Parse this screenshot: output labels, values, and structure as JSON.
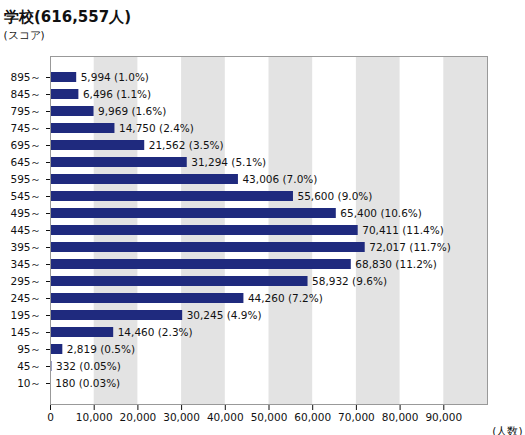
{
  "chart_data": {
    "type": "bar",
    "orientation": "horizontal",
    "title": "学校(616,557人)",
    "ylabel": "(スコア)",
    "xlabel": "(人数)",
    "categories": [
      "895～",
      "845～",
      "795～",
      "745～",
      "695～",
      "645～",
      "595～",
      "545～",
      "495～",
      "445～",
      "395～",
      "345～",
      "295～",
      "245～",
      "195～",
      "145～",
      "95～",
      "45～",
      "10～"
    ],
    "values": [
      5994,
      6496,
      9969,
      14750,
      21562,
      31294,
      43006,
      55600,
      65400,
      70411,
      72017,
      68830,
      58932,
      44260,
      30245,
      14460,
      2819,
      332,
      180
    ],
    "value_labels": [
      "5,994 (1.0%)",
      "6,496 (1.1%)",
      "9,969 (1.6%)",
      "14,750 (2.4%)",
      "21,562 (3.5%)",
      "31,294 (5.1%)",
      "43,006 (7.0%)",
      "55,600 (9.0%)",
      "65,400 (10.6%)",
      "70,411 (11.4%)",
      "72,017 (11.7%)",
      "68,830 (11.2%)",
      "58,932 (9.6%)",
      "44,260 (7.2%)",
      "30,245 (4.9%)",
      "14,460 (2.3%)",
      "2,819 (0.5%)",
      "332 (0.05%)",
      "180 (0.03%)"
    ],
    "data_labels": true,
    "color": "#1f2a7e",
    "xlim": [
      0,
      100000
    ],
    "xticks": [
      0,
      {
        "value": 10000,
        "label": "10,000"
      },
      {
        "value": 20000,
        "label": "20,000"
      },
      {
        "value": 30000,
        "label": "30,000"
      },
      {
        "value": 40000,
        "label": "40,000"
      },
      {
        "value": 50000,
        "label": "50,000"
      },
      {
        "value": 60000,
        "label": "60,000"
      },
      {
        "value": 70000,
        "label": "70,000"
      },
      {
        "value": 80000,
        "label": "80,000"
      },
      {
        "value": 90000,
        "label": "90,000"
      }
    ],
    "grid": true
  }
}
